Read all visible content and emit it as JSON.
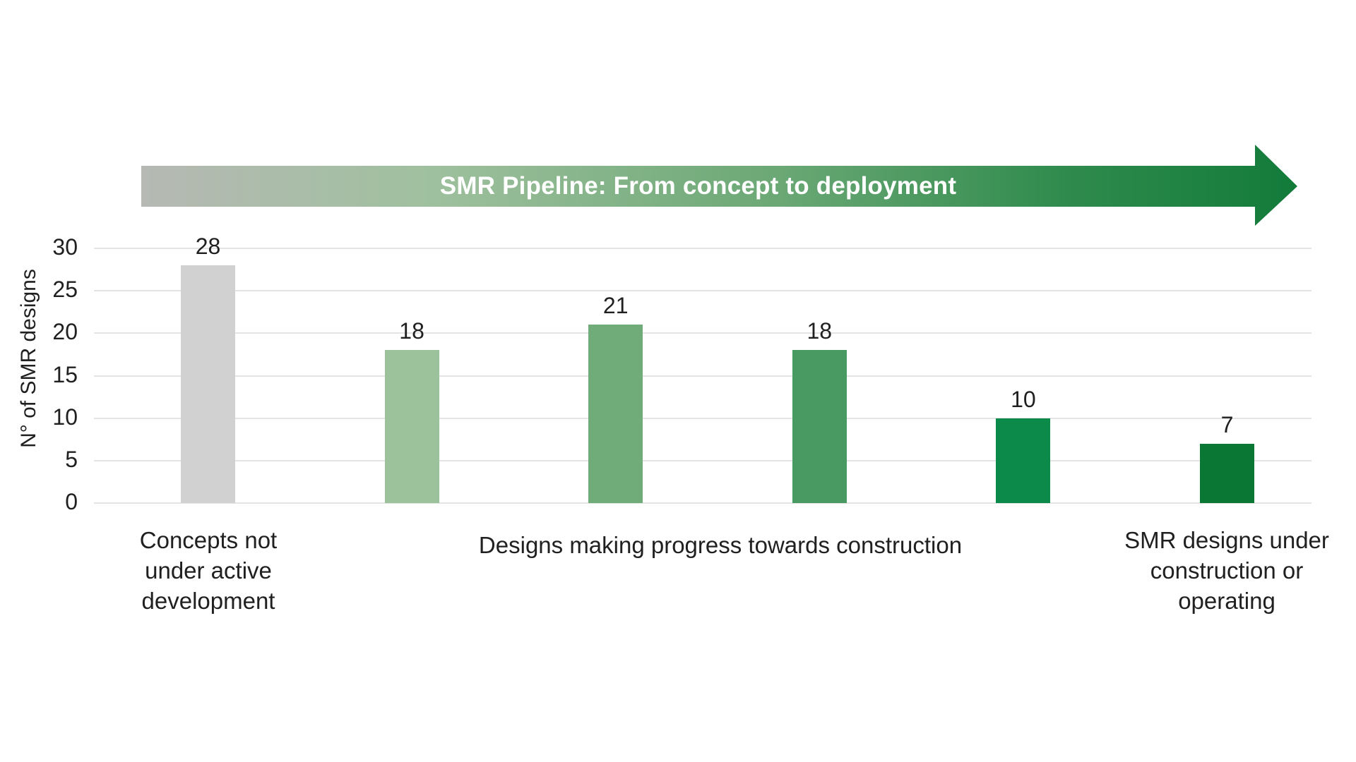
{
  "arrow": {
    "gradient": [
      "#b6b9b4",
      "#9fc09e",
      "#6ba875",
      "#2f8b4d",
      "#127b3a"
    ],
    "text_color": "#ffffff"
  },
  "chart_data": {
    "type": "bar",
    "title": "SMR Pipeline: From concept to deployment",
    "xlabel": "",
    "ylabel": "N° of SMR designs",
    "ylim": [
      0,
      30
    ],
    "yticks": [
      0,
      5,
      10,
      15,
      20,
      25,
      30
    ],
    "grid": "horizontal",
    "legend": "none",
    "bars": [
      {
        "value": 28,
        "label": "28",
        "color": "#d1d1d1",
        "group": "Concepts not under active development"
      },
      {
        "value": 18,
        "label": "18",
        "color": "#9bc29b",
        "group": "Designs making progress towards construction"
      },
      {
        "value": 21,
        "label": "21",
        "color": "#70ac7a",
        "group": "Designs making progress towards construction"
      },
      {
        "value": 18,
        "label": "18",
        "color": "#499a62",
        "group": "Designs making progress towards construction"
      },
      {
        "value": 10,
        "label": "10",
        "color": "#0b8a4a",
        "group": "Designs making progress towards construction"
      },
      {
        "value": 7,
        "label": "7",
        "color": "#0a7735",
        "group": "SMR designs under construction or operating"
      }
    ],
    "x_group_labels": [
      "Concepts not under active development",
      "Designs making progress towards construction",
      "SMR designs under construction or operating"
    ]
  }
}
